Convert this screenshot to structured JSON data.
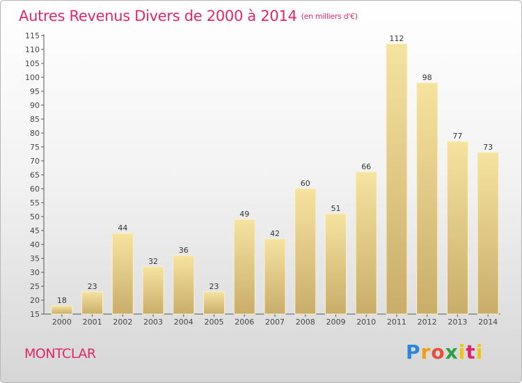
{
  "title": "Autres Revenus Divers de 2000 à 2014",
  "unit": "(en milliers d'€)",
  "location": "MONTCLAR",
  "logo": "Proxiti",
  "chart_data": {
    "type": "bar",
    "title": "Autres Revenus Divers de 2000 à 2014",
    "subtitle": "(en milliers d'€)",
    "xlabel": "",
    "ylabel": "",
    "ylim": [
      15,
      115
    ],
    "ytick_step": 5,
    "grid": false,
    "categories": [
      "2000",
      "2001",
      "2002",
      "2003",
      "2004",
      "2005",
      "2006",
      "2007",
      "2008",
      "2009",
      "2010",
      "2011",
      "2012",
      "2013",
      "2014"
    ],
    "values": [
      18,
      23,
      44,
      32,
      36,
      23,
      49,
      42,
      60,
      51,
      66,
      112,
      98,
      77,
      73
    ],
    "colors": {
      "bar_light": "#f6e3a0",
      "bar_dark": "#c9ad6a",
      "title": "#e0266a"
    }
  }
}
